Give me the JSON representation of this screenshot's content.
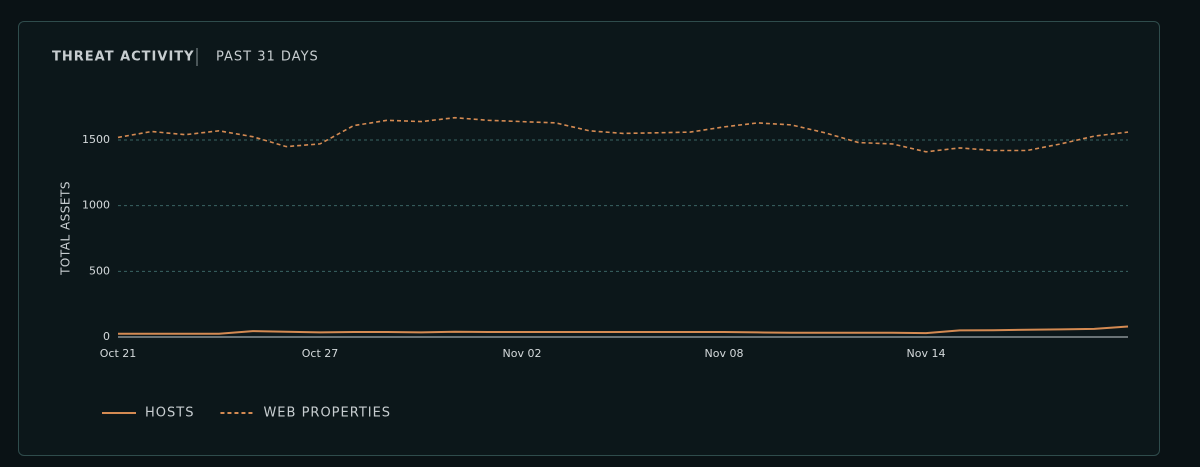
{
  "chart_data": {
    "type": "line",
    "title": "THREAT ACTIVITY",
    "subtitle": "PAST 31 DAYS",
    "y_label": "TOTAL ASSETS",
    "categories": [
      "Oct 21",
      null,
      null,
      null,
      null,
      null,
      "Oct 27",
      null,
      null,
      null,
      null,
      null,
      "Nov 02",
      null,
      null,
      null,
      null,
      null,
      "Nov 08",
      null,
      null,
      null,
      null,
      null,
      "Nov 14",
      null,
      null,
      null,
      null,
      null,
      null
    ],
    "ylim": [
      0,
      1800
    ],
    "yticks": [
      0,
      500,
      1000,
      1500
    ],
    "grid": true,
    "legend": "bottom-left",
    "series": [
      {
        "name": "HOSTS",
        "color": "#d48a52",
        "style": "solid",
        "values": [
          25,
          25,
          25,
          25,
          45,
          40,
          35,
          38,
          38,
          35,
          40,
          38,
          38,
          38,
          38,
          38,
          38,
          38,
          38,
          35,
          33,
          33,
          33,
          33,
          30,
          50,
          52,
          55,
          58,
          62,
          80
        ]
      },
      {
        "name": "WEB PROPERTIES",
        "color": "#d48a52",
        "style": "dashed",
        "values": [
          1520,
          1565,
          1540,
          1570,
          1525,
          1450,
          1470,
          1610,
          1650,
          1640,
          1670,
          1650,
          1640,
          1630,
          1570,
          1550,
          1555,
          1560,
          1600,
          1630,
          1615,
          1555,
          1480,
          1470,
          1410,
          1440,
          1420,
          1420,
          1470,
          1530,
          1560
        ]
      }
    ]
  }
}
